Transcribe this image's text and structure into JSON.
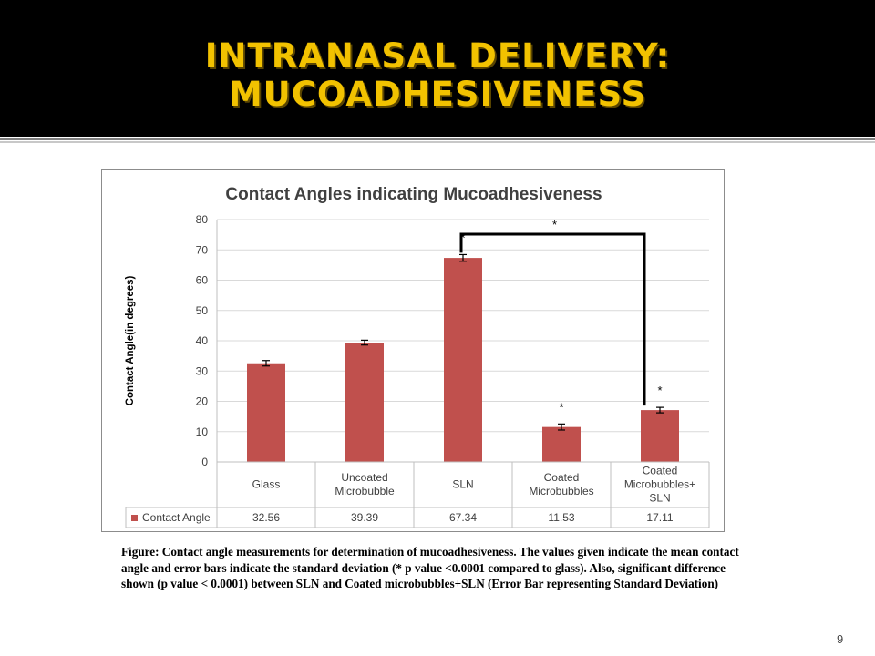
{
  "slide": {
    "title_line1": "INTRANASAL DELIVERY:",
    "title_line2": "MUCOADHESIVENESS",
    "caption": "Figure: Contact angle measurements for determination of mucoadhesiveness. The values given indicate the mean contact angle and error bars indicate the standard deviation (* p value <0.0001 compared to glass). Also, significant difference shown (p value < 0.0001) between SLN and Coated microbubbles+SLN (Error Bar representing Standard Deviation)",
    "page_number": "9",
    "title_color": "#f2c200"
  },
  "chart_data": {
    "type": "bar",
    "title": "Contact Angles indicating Mucoadhesiveness",
    "ylabel": "Contact Angle(in degrees)",
    "xlabel": "",
    "ylim": [
      0,
      80
    ],
    "yticks": [
      0,
      10,
      20,
      30,
      40,
      50,
      60,
      70,
      80
    ],
    "grid": true,
    "legend": "bottom-left (data table)",
    "categories": [
      [
        "Glass"
      ],
      [
        "Uncoated",
        "Microbubble"
      ],
      [
        "SLN"
      ],
      [
        "Coated",
        "Microbubbles"
      ],
      [
        "Coated",
        "Microbubbles+",
        "SLN"
      ]
    ],
    "series": [
      {
        "name": "Contact Angle",
        "color": "#c0504d",
        "values": [
          32.56,
          39.39,
          67.34,
          11.53,
          17.11
        ],
        "value_labels": [
          "32.56",
          "39.39",
          "67.34",
          "11.53",
          "17.11"
        ],
        "errors": [
          0.9,
          0.8,
          1.1,
          1.0,
          0.9
        ]
      }
    ],
    "significance": {
      "bar_markers": [
        "",
        "",
        "*",
        "*",
        "*"
      ],
      "bracket": {
        "from": 2,
        "to": 4,
        "label": "*"
      }
    }
  }
}
